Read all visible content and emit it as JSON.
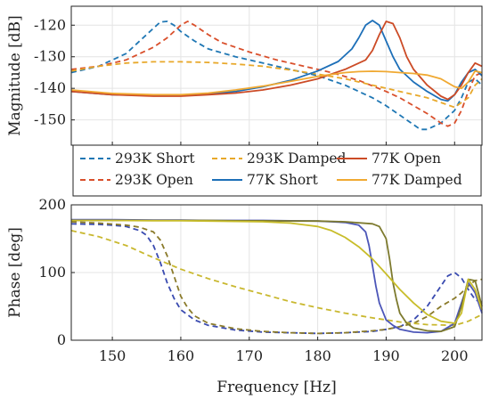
{
  "chart_data": [
    {
      "type": "line",
      "ylabel": "Magnitude [dB]",
      "xlabel": "",
      "xlim": [
        144,
        204
      ],
      "ylim": [
        -158,
        -114
      ],
      "yticks": [
        -120,
        -130,
        -140,
        -150
      ],
      "xticks": [
        150,
        160,
        170,
        180,
        190,
        200
      ],
      "grid": true,
      "series": [
        {
          "name": "293K Short",
          "style": "dashed",
          "color": "#1f77b4",
          "x": [
            144,
            148,
            152,
            154,
            156,
            157,
            158,
            159,
            160,
            162,
            164,
            168,
            172,
            176,
            180,
            184,
            188,
            190,
            192,
            194,
            195,
            196,
            198,
            200,
            201,
            202,
            203,
            204
          ],
          "y": [
            -135,
            -133,
            -129,
            -125,
            -121,
            -119,
            -118.8,
            -120,
            -122,
            -125,
            -127.5,
            -130,
            -132,
            -134,
            -136,
            -139,
            -143,
            -145.5,
            -148.5,
            -151.5,
            -153,
            -153,
            -151,
            -147,
            -143,
            -138,
            -137,
            -139
          ]
        },
        {
          "name": "293K Open",
          "style": "dashed",
          "color": "#d94f2b",
          "x": [
            144,
            148,
            152,
            156,
            158,
            159,
            160,
            161,
            162,
            164,
            166,
            170,
            174,
            178,
            182,
            186,
            190,
            192,
            194,
            196,
            198,
            199,
            200,
            201,
            202,
            203,
            204
          ],
          "y": [
            -134,
            -133,
            -131,
            -127,
            -124,
            -122,
            -120,
            -118.8,
            -120,
            -123,
            -125.5,
            -128.5,
            -131,
            -133,
            -135,
            -137.5,
            -141,
            -143,
            -145.5,
            -148,
            -151,
            -152,
            -151,
            -147,
            -141,
            -136,
            -135
          ]
        },
        {
          "name": "293K Damped",
          "style": "dashed",
          "color": "#e8a82a",
          "x": [
            144,
            148,
            152,
            156,
            160,
            164,
            168,
            172,
            176,
            180,
            184,
            188,
            192,
            196,
            198,
            200,
            202,
            203,
            204
          ],
          "y": [
            -134.5,
            -133,
            -132,
            -131.6,
            -131.6,
            -131.8,
            -132.3,
            -133,
            -134.2,
            -135.5,
            -137,
            -139,
            -141,
            -143,
            -144.5,
            -146,
            -143,
            -139,
            -137
          ]
        },
        {
          "name": "77K Short",
          "style": "solid",
          "color": "#1d6fb8",
          "x": [
            144,
            150,
            156,
            160,
            164,
            168,
            172,
            176,
            180,
            183,
            185,
            186,
            187,
            188,
            189,
            190,
            191,
            192,
            194,
            196,
            198,
            199,
            200,
            201,
            202,
            203,
            204
          ],
          "y": [
            -141,
            -142,
            -142.3,
            -142.2,
            -141.8,
            -141,
            -139.5,
            -137.5,
            -134.5,
            -131.5,
            -127.5,
            -124,
            -120,
            -118.5,
            -120,
            -125,
            -130,
            -134,
            -138,
            -141,
            -143.5,
            -144,
            -142,
            -138,
            -135,
            -134,
            -136
          ]
        },
        {
          "name": "77K Open",
          "style": "solid",
          "color": "#cc4b26",
          "x": [
            144,
            150,
            156,
            160,
            164,
            168,
            172,
            176,
            180,
            184,
            187,
            188,
            189,
            190,
            191,
            192,
            193,
            194,
            196,
            198,
            199,
            200,
            201,
            202,
            203,
            204
          ],
          "y": [
            -141,
            -142,
            -142.5,
            -142.5,
            -142,
            -141.5,
            -140.5,
            -139,
            -137,
            -134,
            -131,
            -128,
            -123,
            -118.8,
            -119.5,
            -124,
            -130,
            -134,
            -139,
            -142.5,
            -143.5,
            -142,
            -139,
            -135,
            -132,
            -133
          ]
        },
        {
          "name": "77K Damped",
          "style": "solid",
          "color": "#f0a932",
          "x": [
            144,
            150,
            156,
            160,
            164,
            168,
            172,
            176,
            180,
            184,
            186,
            188,
            190,
            192,
            194,
            196,
            198,
            200,
            201,
            202,
            203,
            204
          ],
          "y": [
            -140.5,
            -141.6,
            -142,
            -142,
            -141.5,
            -140.5,
            -139.3,
            -137.8,
            -136.2,
            -135,
            -134.7,
            -134.6,
            -134.7,
            -135,
            -135.3,
            -135.8,
            -137,
            -139.5,
            -140,
            -138,
            -134.5,
            -135
          ]
        }
      ]
    },
    {
      "type": "line",
      "ylabel": "Phase [deg]",
      "xlabel": "Frequency [Hz]",
      "xlim": [
        144,
        204
      ],
      "ylim": [
        0,
        200
      ],
      "yticks": [
        0,
        100,
        200
      ],
      "xticks": [
        150,
        160,
        170,
        180,
        190,
        200
      ],
      "xticklabels": [
        "150",
        "160",
        "170",
        "180",
        "190",
        "200"
      ],
      "grid": true,
      "series": [
        {
          "name": "293K Short",
          "style": "dashed",
          "color": "#3a4bb0",
          "x": [
            144,
            148,
            150,
            152,
            154,
            155,
            156,
            157,
            158,
            159,
            160,
            162,
            164,
            168,
            172,
            176,
            180,
            184,
            188,
            190,
            192,
            194,
            196,
            198,
            199,
            200,
            201,
            202,
            203,
            204
          ],
          "y": [
            172,
            171,
            170,
            168,
            162,
            155,
            140,
            115,
            85,
            62,
            45,
            30,
            22,
            15,
            12,
            11,
            10,
            11,
            13,
            16,
            20,
            30,
            50,
            80,
            95,
            100,
            92,
            75,
            60,
            55
          ]
        },
        {
          "name": "293K Open",
          "style": "dashed",
          "color": "#8a7a2a",
          "x": [
            144,
            148,
            152,
            154,
            156,
            157,
            158,
            159,
            160,
            161,
            162,
            164,
            168,
            172,
            176,
            180,
            184,
            188,
            190,
            192,
            194,
            196,
            198,
            200,
            201,
            202,
            203,
            204
          ],
          "y": [
            175,
            173,
            170,
            167,
            160,
            148,
            125,
            95,
            65,
            48,
            36,
            25,
            17,
            13,
            11,
            10,
            11,
            14,
            16,
            20,
            25,
            35,
            50,
            62,
            70,
            80,
            88,
            90
          ]
        },
        {
          "name": "293K Damped",
          "style": "dashed",
          "color": "#c9b82f",
          "x": [
            144,
            148,
            152,
            156,
            160,
            164,
            168,
            172,
            176,
            180,
            184,
            188,
            192,
            196,
            200,
            202,
            204
          ],
          "y": [
            162,
            153,
            140,
            122,
            105,
            91,
            79,
            68,
            57,
            48,
            40,
            33,
            27,
            23,
            22,
            28,
            38
          ]
        },
        {
          "name": "77K Short",
          "style": "solid",
          "color": "#4c56b8",
          "x": [
            144,
            150,
            156,
            160,
            164,
            168,
            172,
            176,
            180,
            184,
            186,
            187,
            187.5,
            188,
            188.5,
            189,
            190,
            191,
            192,
            194,
            196,
            198,
            200,
            201,
            202,
            203,
            204
          ],
          "y": [
            178,
            178,
            177.5,
            177.5,
            177,
            177,
            177,
            176.5,
            176,
            174,
            170,
            160,
            140,
            110,
            80,
            55,
            30,
            22,
            16,
            12,
            11,
            13,
            25,
            55,
            85,
            70,
            40
          ]
        },
        {
          "name": "77K Open",
          "style": "solid",
          "color": "#7d7a2e",
          "x": [
            144,
            150,
            156,
            160,
            164,
            168,
            172,
            176,
            180,
            184,
            188,
            189,
            190,
            190.5,
            191,
            191.5,
            192,
            193,
            194,
            196,
            198,
            200,
            201,
            202,
            203,
            204
          ],
          "y": [
            177,
            177,
            177,
            177,
            177,
            176.5,
            176.5,
            176,
            176,
            175,
            172,
            168,
            150,
            120,
            85,
            60,
            40,
            25,
            18,
            14,
            13,
            20,
            50,
            90,
            88,
            50
          ]
        },
        {
          "name": "77K Damped",
          "style": "solid",
          "color": "#c8bd2a",
          "x": [
            144,
            150,
            156,
            160,
            164,
            168,
            172,
            176,
            180,
            182,
            184,
            186,
            188,
            190,
            192,
            194,
            196,
            198,
            200,
            201,
            202,
            203,
            204
          ],
          "y": [
            177,
            177,
            176.5,
            176.5,
            176,
            175.5,
            175,
            173,
            168,
            162,
            152,
            138,
            120,
            98,
            75,
            55,
            38,
            28,
            25,
            40,
            90,
            75,
            45
          ]
        }
      ]
    }
  ]
}
